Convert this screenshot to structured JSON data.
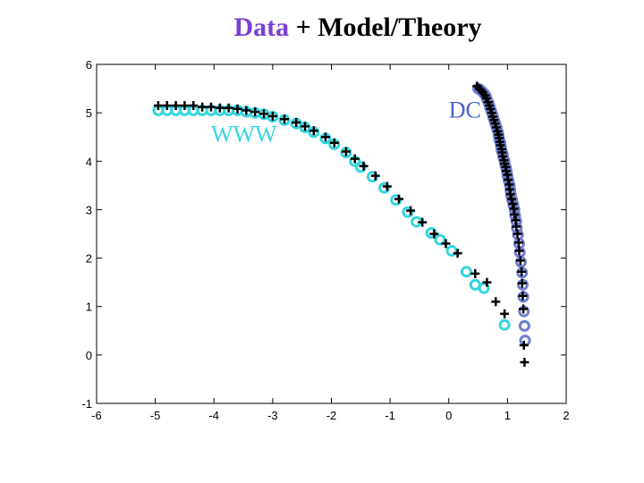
{
  "title": {
    "part1": "Data",
    "part2": " + Model/Theory"
  },
  "colors": {
    "title_accent": "#7a3fd6",
    "www_data": "#33d6e0",
    "dc_data": "#6f7fd0",
    "model": "#000000",
    "annot_www": "#33d6e0",
    "annot_dc": "#4a63c8"
  },
  "chart_data": {
    "type": "scatter",
    "title": "Data + Model/Theory",
    "xlabel": "",
    "ylabel": "",
    "xlim": [
      -6,
      2
    ],
    "ylim": [
      -1,
      6
    ],
    "xticks": [
      "-6",
      "-5",
      "-4",
      "-3",
      "-2",
      "-1",
      "0",
      "1",
      "2"
    ],
    "yticks": [
      "-1",
      "0",
      "1",
      "2",
      "3",
      "4",
      "5",
      "6"
    ],
    "grid": false,
    "annotations": [
      {
        "text": "WWW",
        "x": -4.05,
        "y": 4.4
      },
      {
        "text": "DC",
        "x": 0.0,
        "y": 4.9
      }
    ],
    "series": [
      {
        "marker": "circle",
        "x": [
          -4.95,
          -4.8,
          -4.65,
          -4.5,
          -4.35,
          -4.2,
          -4.05,
          -3.9,
          -3.75,
          -3.6,
          -3.45,
          -3.3,
          -3.15,
          -3.0,
          -2.8,
          -2.6,
          -2.45,
          -2.3,
          -2.1,
          -1.95,
          -1.75,
          -1.6,
          -1.5,
          -1.3,
          -1.1,
          -0.9,
          -0.7,
          -0.55,
          -0.3,
          -0.15,
          0.05,
          0.3,
          0.45,
          0.6,
          0.95
        ],
        "y": [
          5.05,
          5.05,
          5.05,
          5.05,
          5.05,
          5.05,
          5.05,
          5.05,
          5.05,
          5.05,
          5.02,
          5.0,
          4.97,
          4.92,
          4.85,
          4.78,
          4.7,
          4.6,
          4.47,
          4.35,
          4.18,
          4.0,
          3.88,
          3.68,
          3.45,
          3.2,
          2.95,
          2.75,
          2.52,
          2.38,
          2.15,
          1.72,
          1.45,
          1.38,
          0.62
        ]
      },
      {
        "marker": "circle",
        "x": [
          0.5,
          0.53,
          0.56,
          0.6,
          0.63,
          0.65,
          0.68,
          0.7,
          0.72,
          0.74,
          0.76,
          0.78,
          0.8,
          0.82,
          0.84,
          0.85,
          0.86,
          0.88,
          0.89,
          0.9,
          0.92,
          0.93,
          0.95,
          0.96,
          0.98,
          0.99,
          1.0,
          1.02,
          1.04,
          1.05,
          1.06,
          1.08,
          1.1,
          1.12,
          1.13,
          1.15,
          1.16,
          1.18,
          1.2,
          1.21,
          1.23,
          1.25,
          1.26,
          1.27,
          1.28,
          1.29,
          1.3
        ],
        "y": [
          5.5,
          5.48,
          5.45,
          5.4,
          5.35,
          5.28,
          5.2,
          5.12,
          5.05,
          4.98,
          4.9,
          4.82,
          4.75,
          4.68,
          4.6,
          4.52,
          4.45,
          4.38,
          4.3,
          4.22,
          4.15,
          4.08,
          4.0,
          3.92,
          3.85,
          3.78,
          3.7,
          3.6,
          3.5,
          3.4,
          3.3,
          3.2,
          3.1,
          3.0,
          2.88,
          2.76,
          2.62,
          2.48,
          2.3,
          2.12,
          1.92,
          1.7,
          1.45,
          1.2,
          0.9,
          0.6,
          0.3
        ]
      },
      {
        "marker": "plus",
        "x": [
          -4.95,
          -4.8,
          -4.65,
          -4.5,
          -4.35,
          -4.2,
          -4.05,
          -3.9,
          -3.75,
          -3.6,
          -3.45,
          -3.3,
          -3.15,
          -3.0,
          -2.8,
          -2.6,
          -2.45,
          -2.3,
          -2.1,
          -1.95,
          -1.75,
          -1.6,
          -1.45,
          -1.25,
          -1.05,
          -0.85,
          -0.65,
          -0.45,
          -0.25,
          -0.05,
          0.15,
          0.45,
          0.65,
          0.8,
          0.95
        ],
        "y": [
          5.15,
          5.15,
          5.15,
          5.15,
          5.15,
          5.12,
          5.12,
          5.1,
          5.1,
          5.08,
          5.05,
          5.02,
          4.98,
          4.93,
          4.87,
          4.8,
          4.72,
          4.63,
          4.5,
          4.38,
          4.2,
          4.05,
          3.9,
          3.7,
          3.48,
          3.22,
          2.98,
          2.74,
          2.5,
          2.3,
          2.1,
          1.68,
          1.5,
          1.1,
          0.85
        ]
      },
      {
        "marker": "plus",
        "x": [
          0.48,
          0.52,
          0.55,
          0.58,
          0.62,
          0.64,
          0.67,
          0.69,
          0.71,
          0.73,
          0.75,
          0.77,
          0.79,
          0.81,
          0.83,
          0.85,
          0.86,
          0.87,
          0.88,
          0.9,
          0.91,
          0.92,
          0.94,
          0.95,
          0.97,
          0.98,
          1.0,
          1.01,
          1.03,
          1.04,
          1.05,
          1.07,
          1.09,
          1.11,
          1.12,
          1.14,
          1.15,
          1.17,
          1.19,
          1.2,
          1.22,
          1.24,
          1.25,
          1.26,
          1.27,
          1.28,
          1.29
        ],
        "y": [
          5.55,
          5.5,
          5.47,
          5.42,
          5.36,
          5.3,
          5.22,
          5.15,
          5.08,
          5.0,
          4.92,
          4.85,
          4.78,
          4.7,
          4.62,
          4.55,
          4.48,
          4.4,
          4.33,
          4.25,
          4.18,
          4.1,
          4.02,
          3.95,
          3.88,
          3.8,
          3.72,
          3.62,
          3.52,
          3.42,
          3.32,
          3.22,
          3.12,
          3.02,
          2.9,
          2.78,
          2.65,
          2.5,
          2.32,
          2.15,
          1.95,
          1.72,
          1.48,
          1.22,
          0.95,
          0.2,
          -0.15
        ]
      }
    ]
  }
}
